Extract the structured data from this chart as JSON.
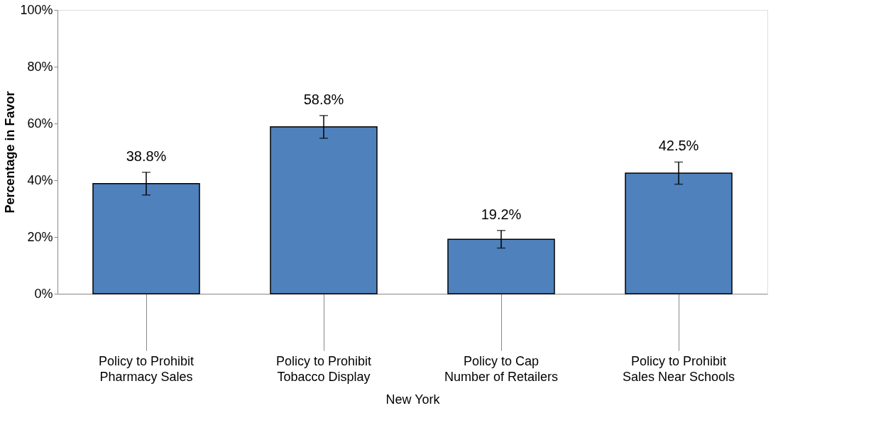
{
  "chart_data": {
    "type": "bar",
    "categories": [
      "Policy to Prohibit Pharmacy Sales",
      "Policy to Prohibit Tobacco Display",
      "Policy to Cap Number of Retailers",
      "Policy to Prohibit Sales Near Schools"
    ],
    "values": [
      38.8,
      58.8,
      19.2,
      42.5
    ],
    "errors": [
      4,
      4,
      3.1,
      3.9
    ],
    "value_labels": [
      "38.8%",
      "58.8%",
      "19.2%",
      "42.5%"
    ],
    "color": "#4f81bd",
    "xlabel": "New York",
    "ylabel": "Percentage in Favor",
    "ylim": [
      0,
      100
    ],
    "yticks": [
      {
        "value": 0,
        "label": "0%"
      },
      {
        "value": 20,
        "label": "20%"
      },
      {
        "value": 40,
        "label": "40%"
      },
      {
        "value": 60,
        "label": "60%"
      },
      {
        "value": 80,
        "label": "80%"
      },
      {
        "value": 100,
        "label": "100%"
      }
    ],
    "grid": false
  }
}
